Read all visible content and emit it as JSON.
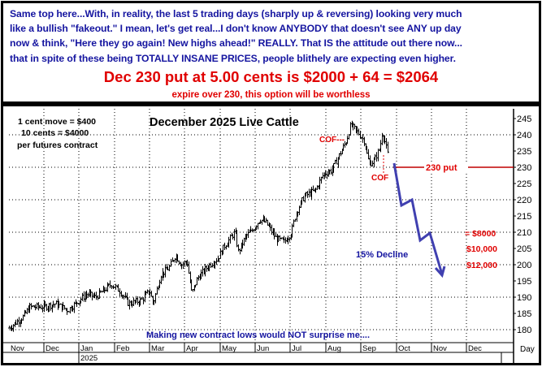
{
  "commentary": "Same top here...With, in reality, the last 5 trading days (sharply up & reversing) looking very much\nlike a bullish \"fakeout.\" I mean, let's get real...I don't know ANYBODY that doesn't see ANY up day\nnow & think, \"Here they go again! New highs ahead!\" REALLY. That IS the attitude out there now...\nthat in spite of these being TOTALLY INSANE PRICES, people blithely are expecting even higher.",
  "headline": "Dec 230 put at 5.00 cents is $2000 + 64 = $2064",
  "subline": "expire over 230, this option will be worthless",
  "colors": {
    "commentary": "#1515a0",
    "red": "#e00000",
    "arrow": "#4040b0",
    "bars": "#000000"
  },
  "chart_data": {
    "type": "ohlc-bar",
    "title": "December 2025 Live Cattle",
    "notes": [
      "1 cent move = $400",
      "10 cents = $4000",
      "per futures contract"
    ],
    "ylim": [
      177,
      247
    ],
    "yticks": [
      245,
      240,
      235,
      230,
      225,
      220,
      215,
      210,
      205,
      200,
      195,
      190,
      185,
      180
    ],
    "grid": true,
    "x_months": [
      "Nov",
      "Dec",
      "Jan",
      "Feb",
      "Mar",
      "Apr",
      "May",
      "Jun",
      "Jul",
      "Aug",
      "Sep",
      "Oct",
      "Nov",
      "Dec"
    ],
    "x_year_label": "2025",
    "x_axis_unit": "Day",
    "closes": [
      [
        "2024-11-01",
        180.5
      ],
      [
        "2024-11-13",
        184
      ],
      [
        "2024-11-19",
        187
      ],
      [
        "2024-12-01",
        187
      ],
      [
        "2024-12-11",
        188
      ],
      [
        "2024-12-22",
        186
      ],
      [
        "2025-01-01",
        189
      ],
      [
        "2025-01-08",
        191
      ],
      [
        "2025-01-15",
        190
      ],
      [
        "2025-01-29",
        194
      ],
      [
        "2025-02-05",
        192
      ],
      [
        "2025-02-12",
        188
      ],
      [
        "2025-02-22",
        189
      ],
      [
        "2025-03-01",
        192
      ],
      [
        "2025-03-04",
        188
      ],
      [
        "2025-03-11",
        197
      ],
      [
        "2025-03-18",
        199
      ],
      [
        "2025-03-24",
        203
      ],
      [
        "2025-03-29",
        200
      ],
      [
        "2025-04-03",
        201
      ],
      [
        "2025-04-07",
        191
      ],
      [
        "2025-04-12",
        196
      ],
      [
        "2025-04-22",
        200
      ],
      [
        "2025-04-29",
        202
      ],
      [
        "2025-05-05",
        206
      ],
      [
        "2025-05-14",
        210
      ],
      [
        "2025-05-17",
        204
      ],
      [
        "2025-05-24",
        209
      ],
      [
        "2025-05-28",
        210
      ],
      [
        "2025-06-05",
        214
      ],
      [
        "2025-06-10",
        213
      ],
      [
        "2025-06-19",
        208
      ],
      [
        "2025-06-26",
        207
      ],
      [
        "2025-07-02",
        210
      ],
      [
        "2025-07-06",
        216
      ],
      [
        "2025-07-13",
        221
      ],
      [
        "2025-07-23",
        223
      ],
      [
        "2025-07-30",
        228
      ],
      [
        "2025-08-06",
        229
      ],
      [
        "2025-08-19",
        238
      ],
      [
        "2025-08-23",
        243
      ],
      [
        "2025-08-31",
        240
      ],
      [
        "2025-09-04",
        238
      ],
      [
        "2025-09-06",
        234
      ],
      [
        "2025-09-08",
        231
      ],
      [
        "2025-09-12",
        232
      ],
      [
        "2025-09-17",
        236
      ],
      [
        "2025-09-19",
        241
      ],
      [
        "2025-09-21",
        238
      ],
      [
        "2025-09-24",
        233
      ]
    ],
    "annotations": {
      "cof_top": "COF---",
      "cof_bottom": "COF",
      "put_line_label": "230 put",
      "put_line_value": 230,
      "decline_label": "15% Decline",
      "targets": [
        "= $8000",
        "$10,000",
        "$12,000"
      ],
      "footer": "Making new contract lows would NOT surprise me...."
    }
  }
}
